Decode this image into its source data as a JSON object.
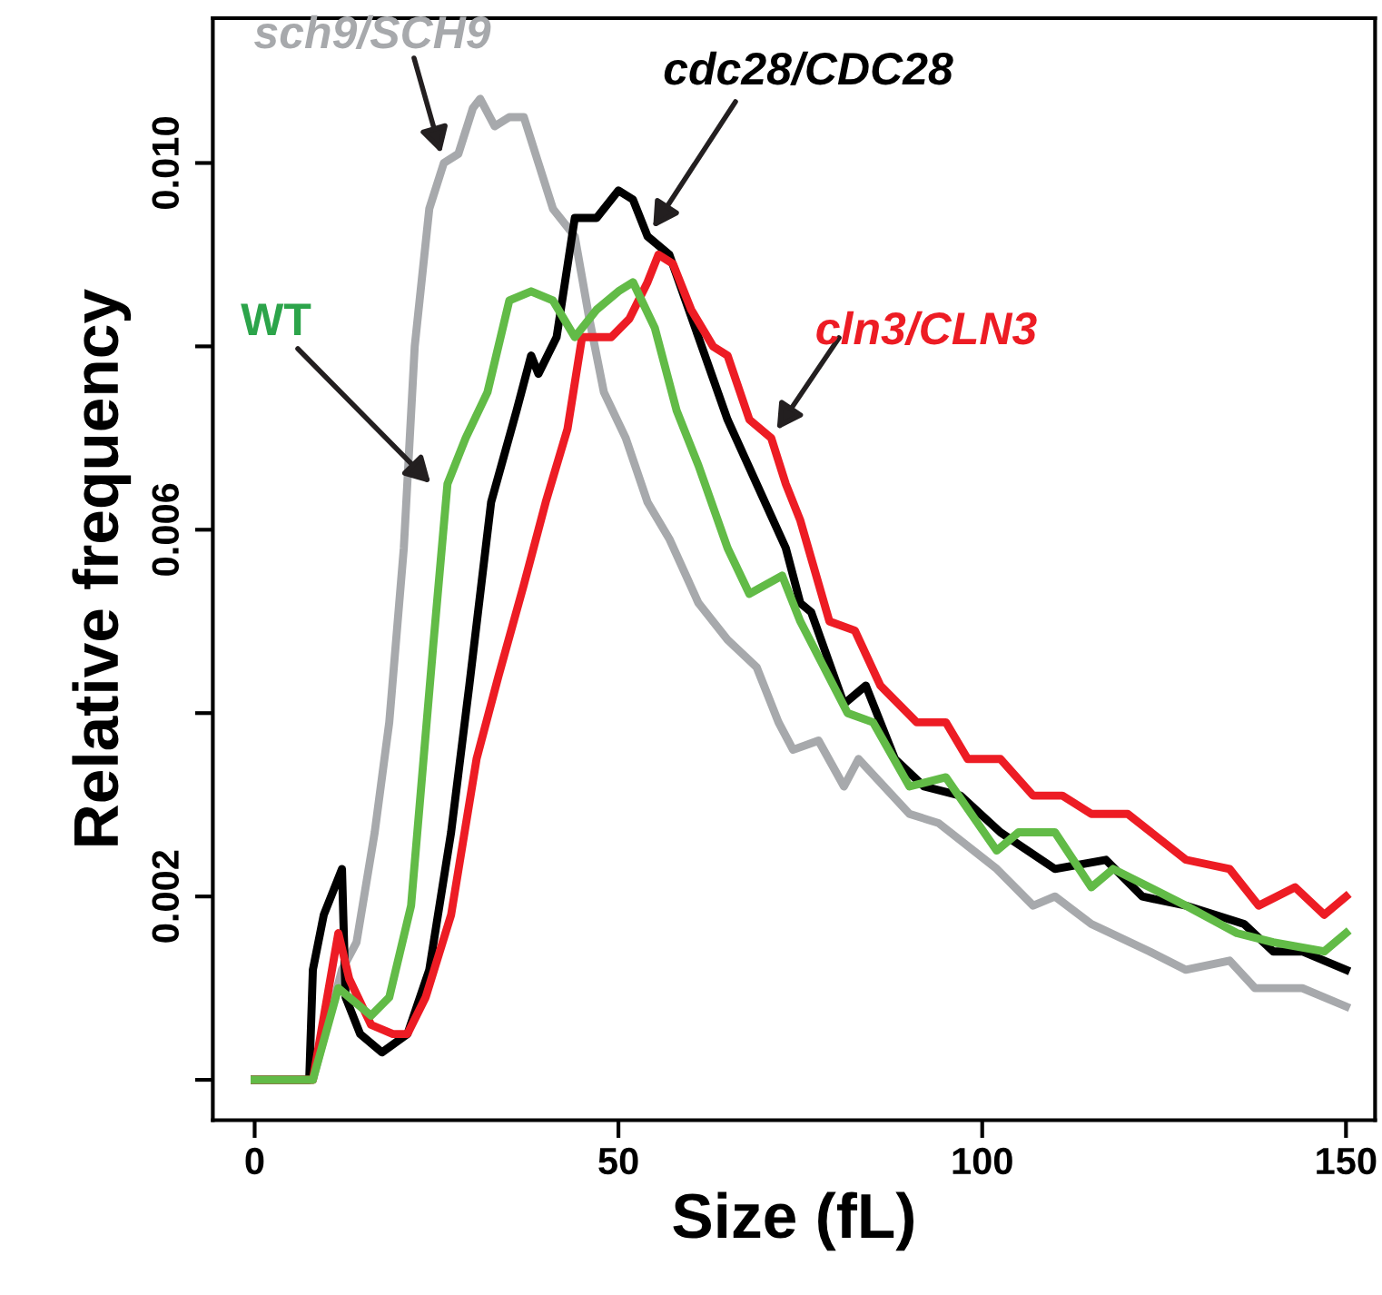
{
  "chart_data": {
    "type": "line",
    "xlabel": "Size (fL)",
    "ylabel": "Relative frequency",
    "xlim": [
      -5.75,
      154
    ],
    "ylim": [
      -0.00044,
      0.01158
    ],
    "xticks": [
      0,
      50,
      100,
      150
    ],
    "yticks": [
      {
        "value": 0,
        "label": null
      },
      0.002,
      {
        "value": 0.004,
        "label": null
      },
      0.006,
      {
        "value": 0.008,
        "label": null
      },
      {
        "value": 0.01,
        "label": "0.010"
      }
    ],
    "grid": false,
    "legend": false,
    "marker": "none",
    "line_style": "solid",
    "annotations": [
      {
        "text": "sch9/SCH9",
        "x": 26,
        "y": 0.01
      },
      {
        "text": "cdc28/CDC28",
        "x": 54,
        "y": 0.0092
      },
      {
        "text": "cln3/CLN3",
        "x": 71,
        "y": 0.007
      },
      "WT"
    ],
    "series": [
      {
        "color": "#a7a9ac",
        "x": [
          0,
          8,
          12,
          14,
          16.5,
          18.5,
          20.5,
          22,
          24,
          26,
          28,
          30,
          31,
          33,
          35,
          37,
          39,
          41,
          44,
          46,
          48,
          51,
          54,
          57,
          61,
          65,
          69,
          72,
          74,
          77.5,
          81,
          83,
          90,
          94,
          102,
          107,
          110,
          115,
          123,
          128,
          134,
          137.5,
          144,
          150
        ],
        "values": [
          0,
          0,
          0.0012,
          0.0015,
          0.0027,
          0.0039,
          0.0058,
          0.008,
          0.0095,
          0.01,
          0.0101,
          0.0106,
          0.0107,
          0.0104,
          0.0105,
          0.0105,
          0.01,
          0.0095,
          0.0092,
          0.0083,
          0.0075,
          0.007,
          0.0063,
          0.0059,
          0.0052,
          0.0048,
          0.0045,
          0.0039,
          0.0036,
          0.0037,
          0.0032,
          0.0035,
          0.0029,
          0.0028,
          0.0023,
          0.0019,
          0.002,
          0.0017,
          0.0014,
          0.0012,
          0.0013,
          0.001,
          0.001,
          0.0008
        ]
      },
      {
        "color": "#000000",
        "x": [
          0,
          7.5,
          8,
          9.5,
          12,
          12.5,
          14.5,
          17.5,
          21,
          24,
          27,
          29.5,
          32.5,
          36,
          38,
          39,
          41.5,
          44,
          47,
          50,
          52,
          54,
          57,
          61,
          65,
          69,
          73,
          75,
          76.5,
          81,
          84,
          88,
          92,
          97,
          102.5,
          110,
          117,
          122,
          128,
          136,
          140,
          144,
          150
        ],
        "values": [
          0,
          0,
          0.0012,
          0.0018,
          0.0023,
          0.0009,
          0.0005,
          0.0003,
          0.0005,
          0.0012,
          0.0027,
          0.0043,
          0.0063,
          0.0073,
          0.0079,
          0.0077,
          0.0081,
          0.0094,
          0.0094,
          0.0097,
          0.0096,
          0.0092,
          0.009,
          0.0081,
          0.0072,
          0.0065,
          0.0058,
          0.0052,
          0.0051,
          0.0041,
          0.0043,
          0.0035,
          0.0032,
          0.0031,
          0.0027,
          0.0023,
          0.0024,
          0.002,
          0.0019,
          0.0017,
          0.0014,
          0.0014,
          0.0012
        ]
      },
      {
        "color": "#ed1c24",
        "x": [
          0,
          8,
          11.5,
          13,
          16,
          19,
          21,
          23.5,
          27,
          30.5,
          33.5,
          37,
          40,
          43,
          45,
          49,
          51.5,
          54,
          55.5,
          57.5,
          60,
          63,
          65,
          68,
          71,
          73,
          75,
          79,
          82.5,
          86,
          91,
          95,
          98,
          102.5,
          107,
          111,
          115,
          120,
          128,
          134,
          138,
          143,
          147,
          150
        ],
        "values": [
          0,
          0,
          0.0016,
          0.0011,
          0.0006,
          0.0005,
          0.0005,
          0.0009,
          0.0018,
          0.0035,
          0.0044,
          0.0054,
          0.0063,
          0.0071,
          0.0081,
          0.0081,
          0.0083,
          0.0087,
          0.009,
          0.0089,
          0.0084,
          0.008,
          0.0079,
          0.0072,
          0.007,
          0.0065,
          0.0061,
          0.005,
          0.0049,
          0.0043,
          0.0039,
          0.0039,
          0.0035,
          0.0035,
          0.0031,
          0.0031,
          0.0029,
          0.0029,
          0.0024,
          0.0023,
          0.0019,
          0.0021,
          0.0018,
          0.002
        ]
      },
      {
        "color": "#62bb47",
        "x": [
          0,
          8,
          11.5,
          16,
          18.5,
          21.5,
          24.5,
          26.5,
          29,
          32,
          35,
          38,
          41,
          44,
          47,
          50,
          52,
          55,
          58,
          61,
          65,
          68,
          72.5,
          75,
          81.5,
          85,
          90,
          95,
          102,
          105,
          110,
          115,
          118,
          128,
          135,
          140,
          147,
          150
        ],
        "values": [
          0,
          0,
          0.001,
          0.0007,
          0.0009,
          0.0019,
          0.0047,
          0.0065,
          0.007,
          0.0075,
          0.0085,
          0.0086,
          0.0085,
          0.0081,
          0.0084,
          0.0086,
          0.0087,
          0.0082,
          0.0073,
          0.0067,
          0.0058,
          0.0053,
          0.0055,
          0.005,
          0.004,
          0.0039,
          0.0032,
          0.0033,
          0.0025,
          0.0027,
          0.0027,
          0.0021,
          0.0023,
          0.0019,
          0.0016,
          0.0015,
          0.0014,
          0.0016
        ]
      }
    ]
  }
}
